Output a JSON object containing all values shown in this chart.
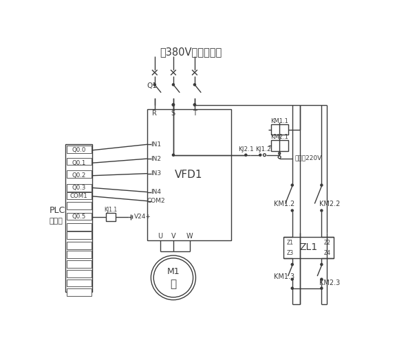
{
  "bg_color": "#ffffff",
  "lc": "#3a3a3a",
  "lw": 1.0,
  "title": "～380V三相交流电",
  "plc_label1": "PLC",
  "plc_label2": "控制器",
  "vfd_label": "VFD1",
  "motor_label1": "M1",
  "motor_label2": "～",
  "zl_label": "ZL1",
  "ac_label": "～交流220V",
  "v24_label": "V24+",
  "q1_label": "Q1",
  "kj21_label": "KJ2.1",
  "kj12_label": "KJ1.2",
  "km11_label": "KM1.1",
  "km21_label": "KM2.1",
  "km12_label": "KM1.2",
  "km22_label": "KM2.2",
  "km13_label": "KM1.3",
  "km23_label": "KM2.3",
  "kj11_label": "KJ1.1",
  "rst_labels": [
    "R",
    "S",
    "T"
  ],
  "uvw_labels": [
    "U",
    "V",
    "W"
  ],
  "in_labels": [
    "IN1",
    "IN2",
    "IN3",
    "IN4",
    "IN4",
    "COM2"
  ],
  "plc_terms": [
    "Q0.0",
    "Q0.1",
    "Q0.2",
    "Q0.3",
    "COM1",
    "Q0.5"
  ],
  "z_labels": [
    "Z1",
    "Z2",
    "Z3",
    "Z4"
  ]
}
